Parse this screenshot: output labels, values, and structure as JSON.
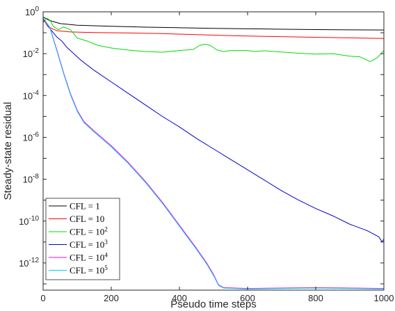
{
  "chart_data": {
    "type": "line",
    "xlabel": "Pseudo time steps",
    "ylabel": "Steady-state residual",
    "xlim": [
      0,
      1000
    ],
    "ylim_log10": [
      -13.3,
      0
    ],
    "yscale": "log",
    "grid": false,
    "legend_position": "bottom-left",
    "x_ticks": [
      "0",
      "200",
      "400",
      "600",
      "800",
      "1000"
    ],
    "x_tick_values": [
      0,
      200,
      400,
      600,
      800,
      1000
    ],
    "y_tick_exponents": [
      0,
      -2,
      -4,
      -6,
      -8,
      -10,
      -12
    ],
    "y_tick_labels": [
      {
        "base": "10",
        "exp": "0"
      },
      {
        "base": "10",
        "exp": "-2"
      },
      {
        "base": "10",
        "exp": "-4"
      },
      {
        "base": "10",
        "exp": "-6"
      },
      {
        "base": "10",
        "exp": "-8"
      },
      {
        "base": "10",
        "exp": "-10"
      },
      {
        "base": "10",
        "exp": "-12"
      }
    ],
    "series": [
      {
        "name": "CFL = 1",
        "label_base": "CFL = 1",
        "label_sup": "",
        "color": "#000000",
        "points": [
          [
            0,
            -0.25
          ],
          [
            20,
            -0.42
          ],
          [
            50,
            -0.56
          ],
          [
            100,
            -0.64
          ],
          [
            200,
            -0.69
          ],
          [
            300,
            -0.73
          ],
          [
            400,
            -0.76
          ],
          [
            500,
            -0.79
          ],
          [
            600,
            -0.81
          ],
          [
            700,
            -0.83
          ],
          [
            800,
            -0.85
          ],
          [
            900,
            -0.86
          ],
          [
            1000,
            -0.87
          ]
        ]
      },
      {
        "name": "CFL = 10",
        "label_base": "CFL = 10",
        "label_sup": "",
        "color": "#ff0000",
        "points": [
          [
            0,
            -0.35
          ],
          [
            15,
            -0.72
          ],
          [
            40,
            -0.9
          ],
          [
            80,
            -0.96
          ],
          [
            150,
            -0.99
          ],
          [
            250,
            -1.01
          ],
          [
            350,
            -1.04
          ],
          [
            450,
            -1.09
          ],
          [
            550,
            -1.14
          ],
          [
            650,
            -1.17
          ],
          [
            750,
            -1.2
          ],
          [
            850,
            -1.23
          ],
          [
            950,
            -1.26
          ],
          [
            1000,
            -1.27
          ]
        ]
      },
      {
        "name": "CFL = 10^2",
        "label_base": "CFL = 10",
        "label_sup": "2",
        "color": "#00dd00",
        "points": [
          [
            0,
            -0.5
          ],
          [
            10,
            -0.3
          ],
          [
            20,
            -0.4
          ],
          [
            30,
            -0.7
          ],
          [
            45,
            -0.85
          ],
          [
            60,
            -0.72
          ],
          [
            80,
            -0.85
          ],
          [
            100,
            -1.25
          ],
          [
            130,
            -1.4
          ],
          [
            160,
            -1.6
          ],
          [
            200,
            -1.73
          ],
          [
            250,
            -1.83
          ],
          [
            300,
            -1.9
          ],
          [
            350,
            -1.93
          ],
          [
            400,
            -1.85
          ],
          [
            440,
            -1.8
          ],
          [
            460,
            -1.6
          ],
          [
            475,
            -1.55
          ],
          [
            490,
            -1.6
          ],
          [
            510,
            -1.82
          ],
          [
            530,
            -1.9
          ],
          [
            550,
            -1.85
          ],
          [
            600,
            -1.85
          ],
          [
            620,
            -1.9
          ],
          [
            650,
            -1.86
          ],
          [
            700,
            -1.92
          ],
          [
            750,
            -1.98
          ],
          [
            800,
            -2.02
          ],
          [
            850,
            -2.0
          ],
          [
            900,
            -2.12
          ],
          [
            930,
            -2.15
          ],
          [
            960,
            -2.38
          ],
          [
            980,
            -2.2
          ],
          [
            1000,
            -1.85
          ]
        ]
      },
      {
        "name": "CFL = 10^3",
        "label_base": "CFL = 10",
        "label_sup": "3",
        "color": "#0000cc",
        "points": [
          [
            0,
            -0.5
          ],
          [
            5,
            -0.4
          ],
          [
            15,
            -0.7
          ],
          [
            25,
            -0.9
          ],
          [
            40,
            -1.2
          ],
          [
            55,
            -1.4
          ],
          [
            70,
            -1.7
          ],
          [
            90,
            -2.0
          ],
          [
            110,
            -2.3
          ],
          [
            150,
            -2.8
          ],
          [
            200,
            -3.35
          ],
          [
            250,
            -3.9
          ],
          [
            300,
            -4.45
          ],
          [
            350,
            -5.0
          ],
          [
            400,
            -5.5
          ],
          [
            450,
            -6.05
          ],
          [
            500,
            -6.55
          ],
          [
            550,
            -7.05
          ],
          [
            600,
            -7.55
          ],
          [
            650,
            -8.05
          ],
          [
            700,
            -8.55
          ],
          [
            750,
            -9.0
          ],
          [
            800,
            -9.4
          ],
          [
            850,
            -9.75
          ],
          [
            900,
            -10.15
          ],
          [
            950,
            -10.45
          ],
          [
            985,
            -10.75
          ],
          [
            995,
            -11.0
          ],
          [
            1000,
            -10.85
          ]
        ]
      },
      {
        "name": "CFL = 10^4",
        "label_base": "CFL = 10",
        "label_sup": "4",
        "color": "#ff00ff",
        "points": [
          [
            0,
            -0.3
          ],
          [
            20,
            -0.75
          ],
          [
            40,
            -1.8
          ],
          [
            60,
            -2.9
          ],
          [
            80,
            -3.9
          ],
          [
            100,
            -4.7
          ],
          [
            120,
            -5.25
          ],
          [
            150,
            -5.7
          ],
          [
            200,
            -6.4
          ],
          [
            250,
            -7.2
          ],
          [
            300,
            -8.1
          ],
          [
            350,
            -9.1
          ],
          [
            400,
            -10.2
          ],
          [
            450,
            -11.3
          ],
          [
            480,
            -12.0
          ],
          [
            500,
            -12.55
          ],
          [
            515,
            -13.05
          ],
          [
            530,
            -13.18
          ],
          [
            600,
            -13.22
          ],
          [
            700,
            -13.2
          ],
          [
            800,
            -13.18
          ],
          [
            900,
            -13.2
          ],
          [
            1000,
            -13.22
          ]
        ]
      },
      {
        "name": "CFL = 10^5",
        "label_base": "CFL = 10",
        "label_sup": "5",
        "color": "#00ccee",
        "points": [
          [
            0,
            -0.3
          ],
          [
            20,
            -0.78
          ],
          [
            40,
            -1.85
          ],
          [
            60,
            -2.95
          ],
          [
            80,
            -3.95
          ],
          [
            100,
            -4.75
          ],
          [
            120,
            -5.3
          ],
          [
            150,
            -5.75
          ],
          [
            200,
            -6.45
          ],
          [
            250,
            -7.25
          ],
          [
            300,
            -8.15
          ],
          [
            350,
            -9.15
          ],
          [
            400,
            -10.25
          ],
          [
            450,
            -11.35
          ],
          [
            480,
            -12.05
          ],
          [
            500,
            -12.6
          ],
          [
            515,
            -13.08
          ],
          [
            530,
            -13.2
          ],
          [
            600,
            -13.24
          ],
          [
            700,
            -13.22
          ],
          [
            800,
            -13.2
          ],
          [
            900,
            -13.22
          ],
          [
            1000,
            -13.24
          ]
        ]
      }
    ]
  }
}
